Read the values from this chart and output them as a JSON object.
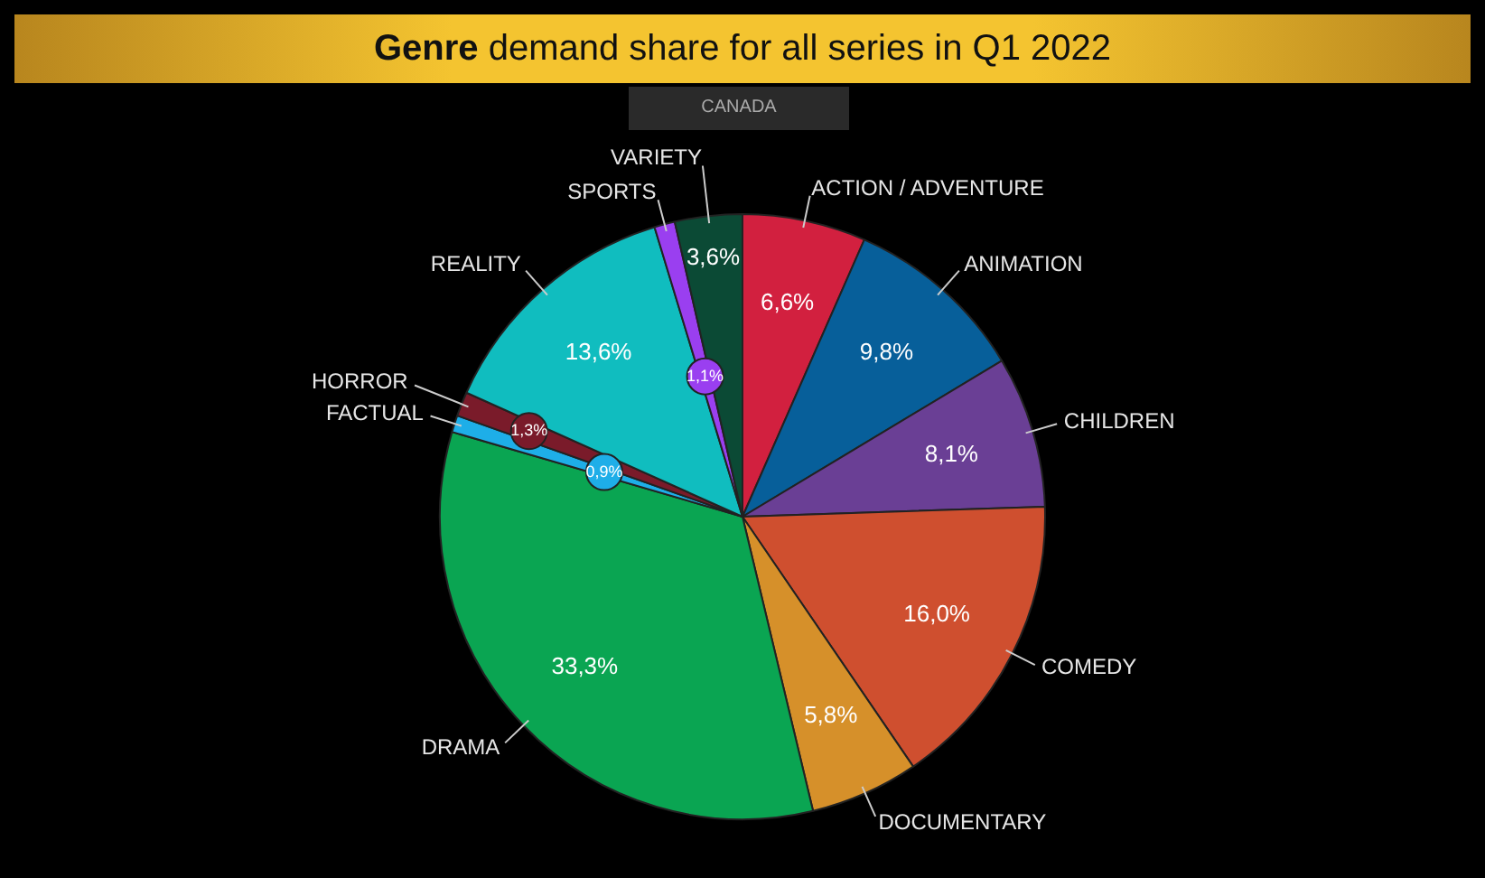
{
  "chart_data": {
    "type": "pie",
    "title": "Genre demand share for all series in Q1 2022",
    "subtitle": "CANADA",
    "categories": [
      "ACTION / ADVENTURE",
      "ANIMATION",
      "CHILDREN",
      "COMEDY",
      "DOCUMENTARY",
      "DRAMA",
      "FACTUAL",
      "HORROR",
      "REALITY",
      "SPORTS",
      "VARIETY"
    ],
    "values": [
      6.6,
      9.8,
      8.1,
      16.0,
      5.8,
      33.3,
      0.9,
      1.3,
      13.6,
      1.1,
      3.6
    ],
    "value_labels": [
      "6,6%",
      "9,8%",
      "8,1%",
      "16,0%",
      "5,8%",
      "33,3%",
      "0,9%",
      "1,3%",
      "13,6%",
      "1,1%",
      "3,6%"
    ],
    "colors": [
      "#d2203f",
      "#075f9a",
      "#6a3f95",
      "#cf4f2f",
      "#d6902a",
      "#0aa552",
      "#1eaee8",
      "#7a1b2a",
      "#10bdbf",
      "#9a3ff0",
      "#0b4a35"
    ],
    "legend": false
  }
}
